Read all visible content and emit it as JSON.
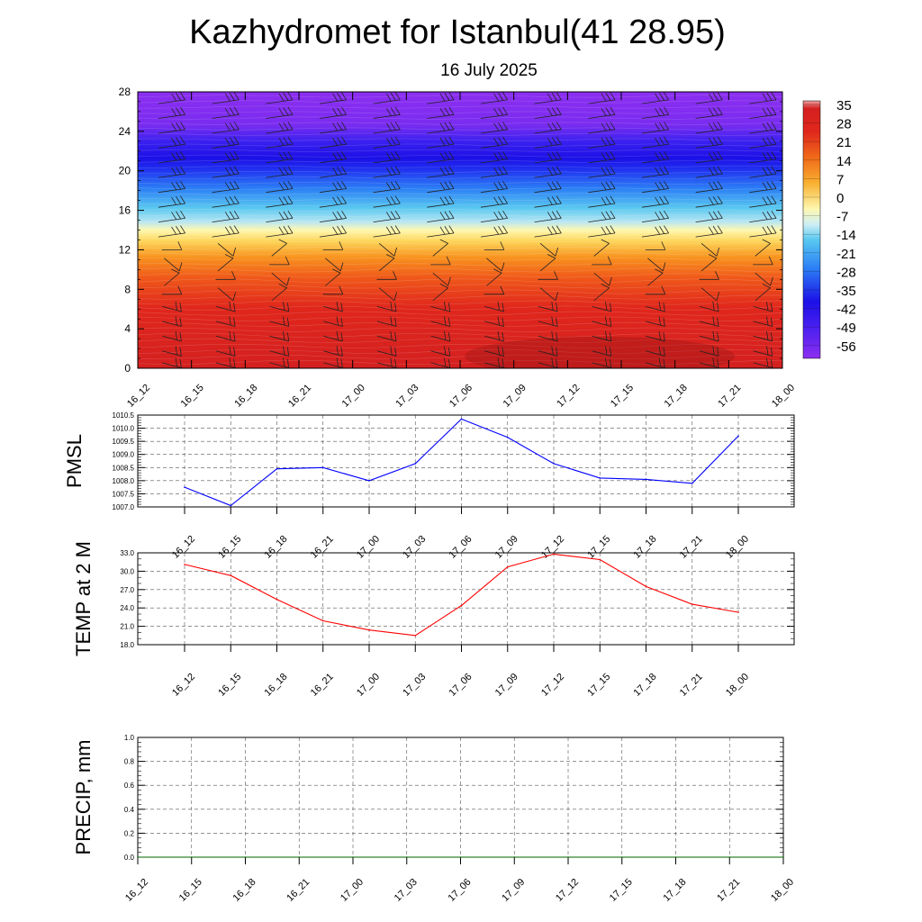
{
  "title": "Kazhydromet for Istanbul(41 28.95)",
  "subtitle": "16 July 2025",
  "time_labels": [
    "16_12",
    "16_15",
    "16_18",
    "16_21",
    "17_00",
    "17_03",
    "17_06",
    "17_09",
    "17_12",
    "17_15",
    "17_18",
    "17_21",
    "18_00"
  ],
  "chart_data": [
    {
      "type": "heatmap",
      "id": "temperature-cross-section",
      "x_ticks": [
        "16_12",
        "16_15",
        "16_18",
        "16_21",
        "17_00",
        "17_03",
        "17_06",
        "17_09",
        "17_12",
        "17_15",
        "17_18",
        "17_21",
        "18_00"
      ],
      "y_ticks": [
        0,
        4,
        8,
        12,
        16,
        20,
        24,
        28
      ],
      "ylim": [
        0,
        28
      ],
      "colorbar": {
        "labels": [
          "35",
          "28",
          "21",
          "14",
          "7",
          "0",
          "-7",
          "-14",
          "-21",
          "-28",
          "-35",
          "-42",
          "-49",
          "-56"
        ],
        "range": [
          -63,
          42
        ]
      },
      "wind_barbs": true,
      "colors": {
        "hot": "#d9221f",
        "orange": "#f7891e",
        "yellow": "#fef5a0",
        "cyan": "#59c8f0",
        "blue": "#2d4cf5",
        "navy": "#1a14e8",
        "violet": "#8a2cf0"
      }
    },
    {
      "type": "line",
      "id": "pmsl",
      "ylabel": "PMSL",
      "categories": [
        "16_12",
        "16_15",
        "16_18",
        "16_21",
        "17_00",
        "17_03",
        "17_06",
        "17_09",
        "17_12",
        "17_15",
        "17_18",
        "17_21",
        "18_00"
      ],
      "values": [
        1007.75,
        1007.05,
        1008.45,
        1008.5,
        1008.0,
        1008.65,
        1010.35,
        1009.65,
        1008.65,
        1008.1,
        1008.05,
        1007.9,
        1009.7
      ],
      "ylim": [
        1007.0,
        1010.5
      ],
      "y_ticks": [
        "1007.0",
        "1007.5",
        "1008.0",
        "1008.5",
        "1009.0",
        "1009.5",
        "1010.0",
        "1010.5"
      ],
      "color": "#0000ff",
      "grid": true
    },
    {
      "type": "line",
      "id": "temp-2m",
      "ylabel": "TEMP at 2 M",
      "categories": [
        "16_12",
        "16_15",
        "16_18",
        "16_21",
        "17_00",
        "17_03",
        "17_06",
        "17_09",
        "17_12",
        "17_15",
        "17_18",
        "17_21",
        "18_00"
      ],
      "values": [
        31.1,
        29.3,
        25.4,
        21.9,
        20.4,
        19.5,
        24.4,
        30.7,
        32.8,
        31.9,
        27.5,
        24.6,
        23.3
      ],
      "ylim": [
        18.0,
        33.0
      ],
      "y_ticks": [
        "18.0",
        "21.0",
        "24.0",
        "27.0",
        "30.0",
        "33.0"
      ],
      "color": "#ff0000",
      "grid": true
    },
    {
      "type": "line",
      "id": "precip",
      "ylabel": "PRECIP, mm",
      "categories": [
        "16_12",
        "16_15",
        "16_18",
        "16_21",
        "17_00",
        "17_03",
        "17_06",
        "17_09",
        "17_12",
        "17_15",
        "17_18",
        "17_21",
        "18_00"
      ],
      "values": [
        0,
        0,
        0,
        0,
        0,
        0,
        0,
        0,
        0,
        0,
        0,
        0,
        0
      ],
      "ylim": [
        0.0,
        1.0
      ],
      "y_ticks": [
        "0.0",
        "0.2",
        "0.4",
        "0.6",
        "0.8",
        "1.0"
      ],
      "color": "#006400",
      "grid": true
    }
  ]
}
